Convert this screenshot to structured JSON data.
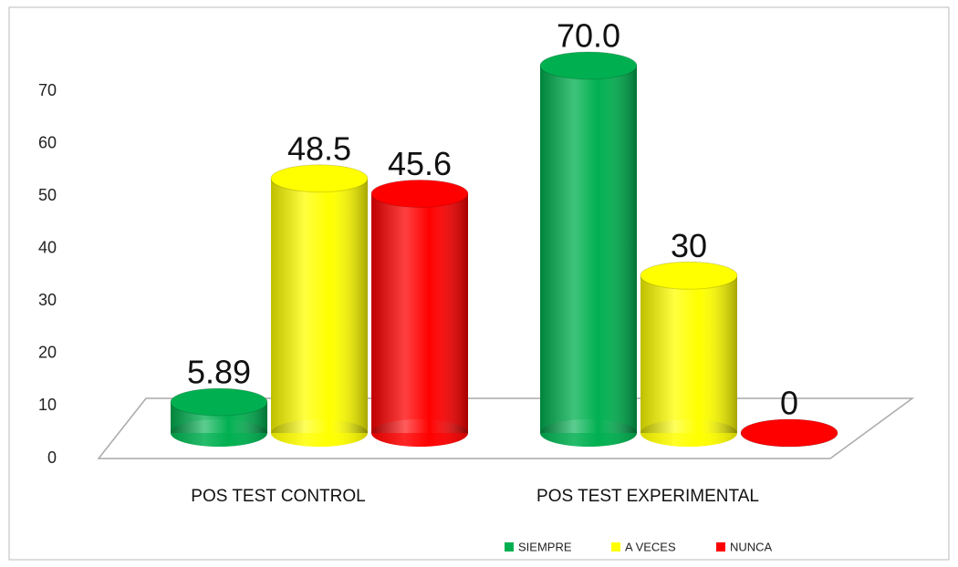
{
  "chart_data": {
    "type": "bar3d",
    "categories": [
      "POS TEST CONTROL",
      "POS TEST EXPERIMENTAL"
    ],
    "series": [
      {
        "name": "SIEMPRE",
        "color": "#00b050",
        "values": [
          5.89,
          70.0
        ],
        "value_labels": [
          "5.89",
          "70.0"
        ]
      },
      {
        "name": "A VECES",
        "color": "#ffff00",
        "values": [
          48.5,
          30
        ],
        "value_labels": [
          "48.5",
          "30"
        ]
      },
      {
        "name": "NUNCA",
        "color": "#ff0000",
        "values": [
          45.6,
          0
        ],
        "value_labels": [
          "45.6",
          "0"
        ]
      }
    ],
    "ylim": [
      0,
      70
    ],
    "yticks": [
      0,
      10,
      20,
      30,
      40,
      50,
      60,
      70
    ],
    "legend": "bottom"
  }
}
